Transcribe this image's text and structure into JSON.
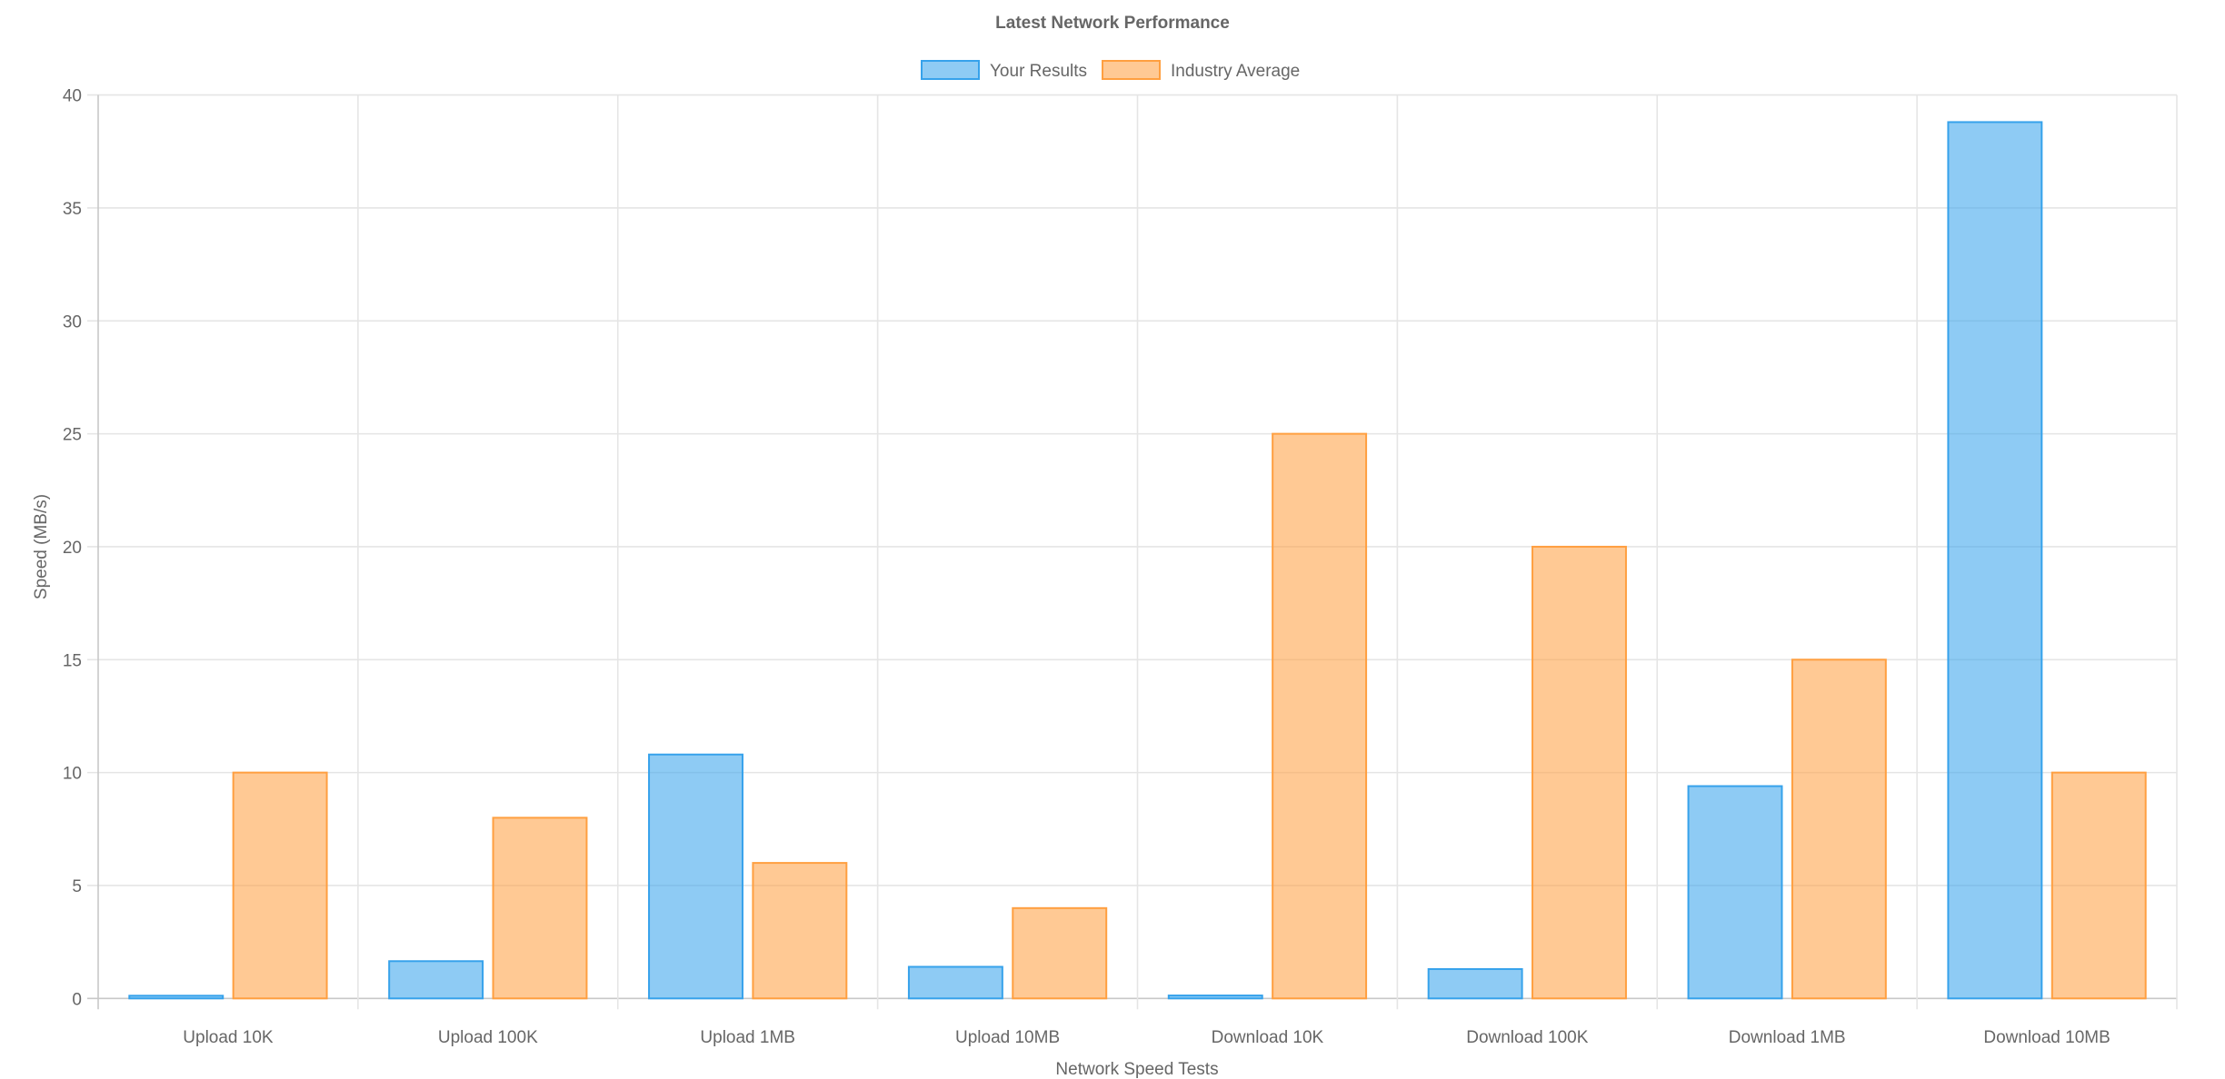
{
  "chart_data": {
    "type": "bar",
    "title": "Latest Network Performance",
    "xlabel": "Network Speed Tests",
    "ylabel": "Speed (MB/s)",
    "ylim": [
      0,
      40
    ],
    "yticks": [
      0,
      5,
      10,
      15,
      20,
      25,
      30,
      35,
      40
    ],
    "grid": true,
    "legend_position": "top",
    "categories": [
      "Upload 10K",
      "Upload 100K",
      "Upload 1MB",
      "Upload 10MB",
      "Download 10K",
      "Download 100K",
      "Download 1MB",
      "Download 10MB"
    ],
    "series": [
      {
        "name": "Your Results",
        "values": [
          0.12,
          1.65,
          10.8,
          1.4,
          0.13,
          1.3,
          9.4,
          38.8
        ],
        "fill": "rgba(54,162,235,0.56)",
        "color": "#36a2eb"
      },
      {
        "name": "Industry Average",
        "values": [
          10,
          8,
          6,
          4,
          25,
          20,
          15,
          10
        ],
        "fill": "rgba(255,159,64,0.56)",
        "color": "#ff9f40"
      }
    ]
  }
}
